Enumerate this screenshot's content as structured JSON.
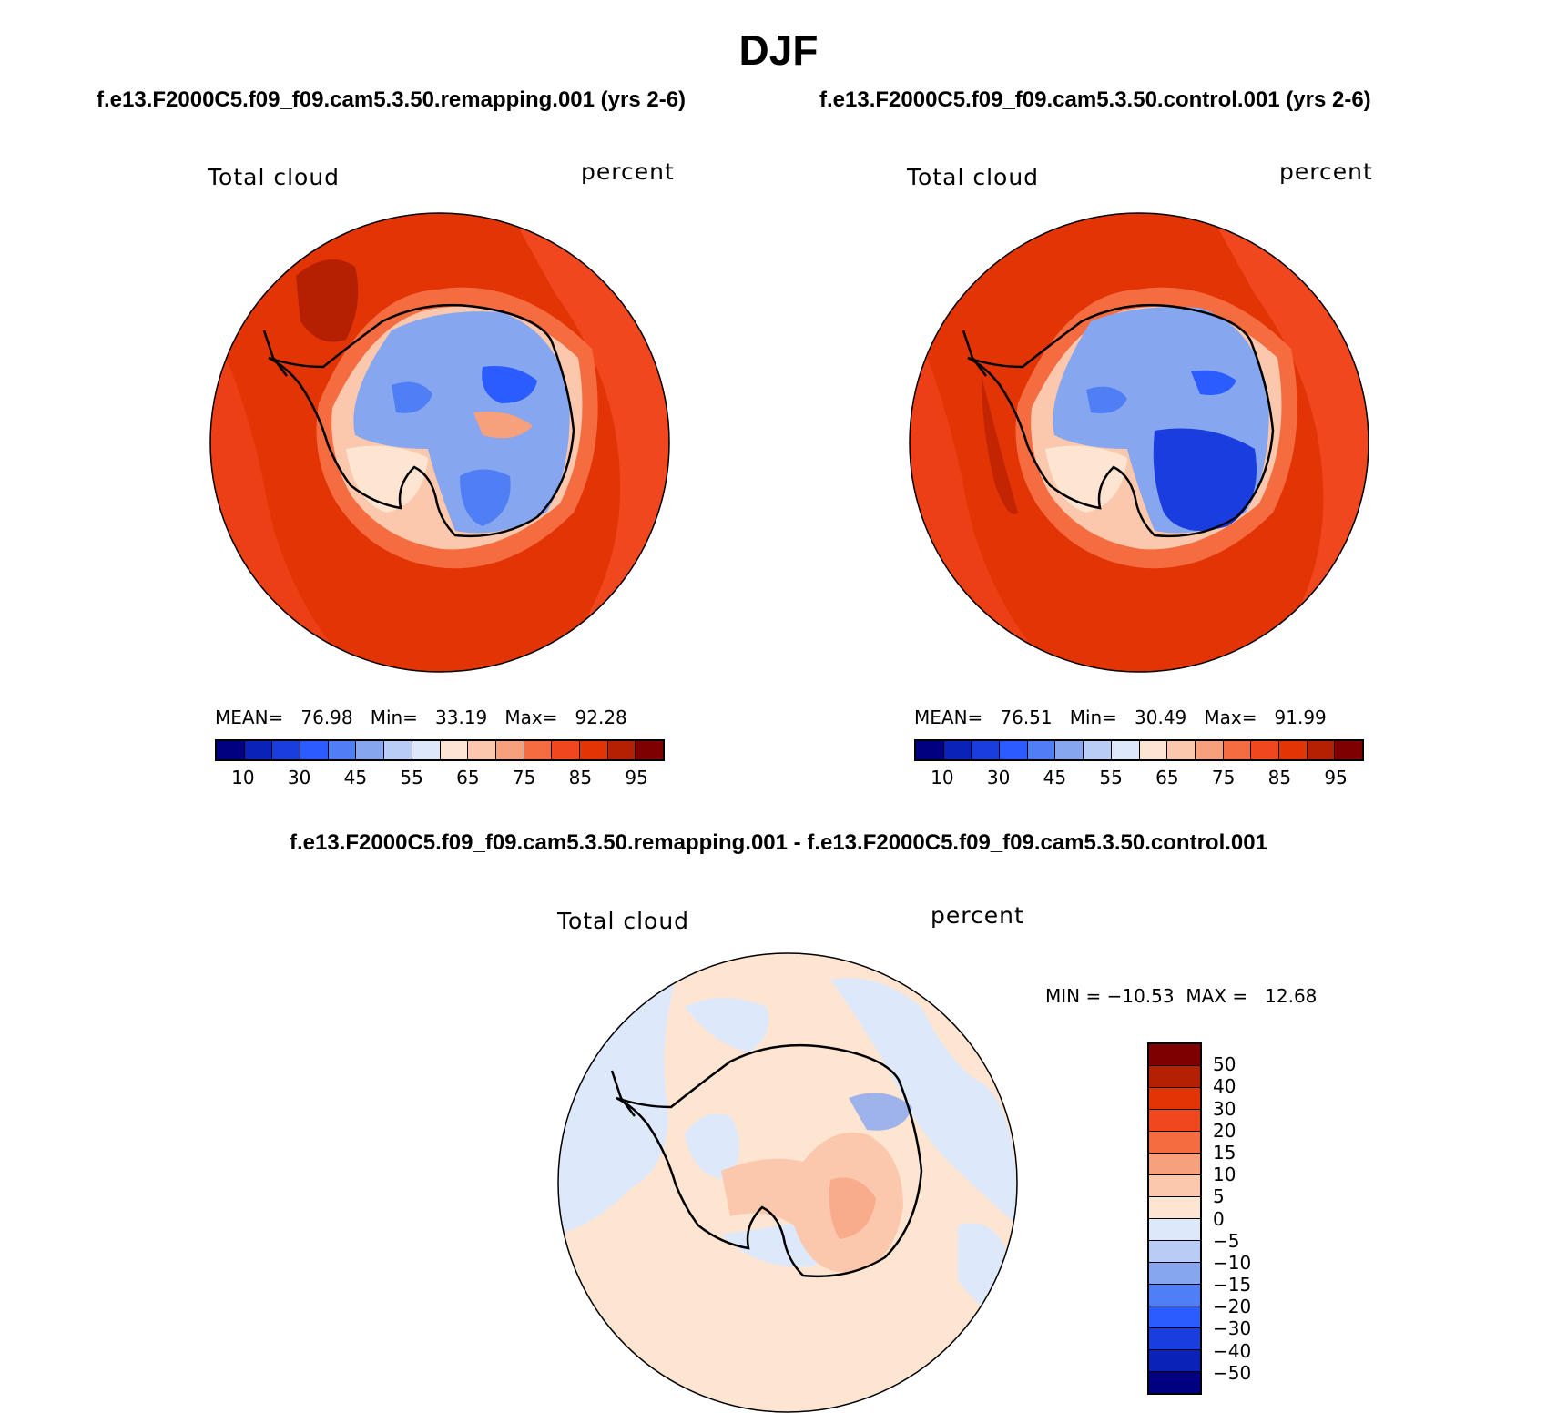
{
  "main_title": "DJF",
  "panel_left": {
    "case_title": "f.e13.F2000C5.f09_f09.cam5.3.50.remapping.001 (yrs 2-6)",
    "variable": "Total cloud",
    "units": "percent",
    "stats": "MEAN=   76.98   Min=   33.19   Max=   92.28",
    "colorbar_ticks": [
      "10",
      "30",
      "45",
      "55",
      "65",
      "75",
      "85",
      "95"
    ]
  },
  "panel_right": {
    "case_title": "f.e13.F2000C5.f09_f09.cam5.3.50.control.001 (yrs 2-6)",
    "variable": "Total cloud",
    "units": "percent",
    "stats": "MEAN=   76.51   Min=   30.49   Max=   91.99",
    "colorbar_ticks": [
      "10",
      "30",
      "45",
      "55",
      "65",
      "75",
      "85",
      "95"
    ]
  },
  "panel_diff": {
    "title": "f.e13.F2000C5.f09_f09.cam5.3.50.remapping.001 - f.e13.F2000C5.f09_f09.cam5.3.50.control.001",
    "variable": "Total cloud",
    "units": "percent",
    "stats": "MIN = −10.53  MAX =   12.68",
    "colorbar_ticks": [
      "50",
      "40",
      "30",
      "20",
      "15",
      "10",
      "5",
      "0",
      "−5",
      "−10",
      "−15",
      "−20",
      "−30",
      "−40",
      "−50"
    ]
  },
  "colors": {
    "abs_scale": [
      "#000080",
      "#0a22b8",
      "#1a3de0",
      "#2a5cff",
      "#4f7ef5",
      "#86a6ef",
      "#b7cdf5",
      "#dde9fb",
      "#fde5d2",
      "#fbc8ad",
      "#f7a07c",
      "#f46c3f",
      "#f1471f",
      "#e33405",
      "#b52003",
      "#7f0000"
    ],
    "diff_scale": [
      "#7f0000",
      "#b52003",
      "#e33405",
      "#f1471f",
      "#f46c3f",
      "#f7a07c",
      "#fbc8ad",
      "#fde5d2",
      "#dde9fb",
      "#b7cdf5",
      "#86a6ef",
      "#4f7ef5",
      "#2a5cff",
      "#1a3de0",
      "#0a22b8",
      "#000080"
    ]
  }
}
